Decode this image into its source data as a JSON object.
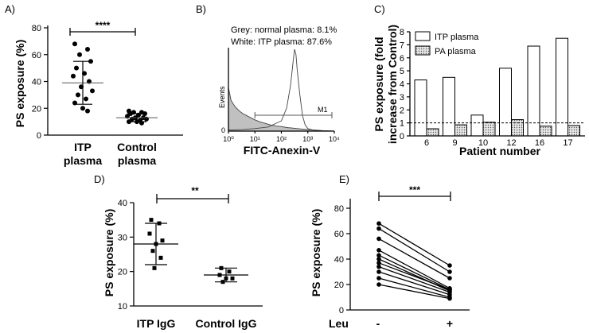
{
  "chart_data": [
    {
      "panel": "A)",
      "type": "scatter",
      "ylabel": "PS exposure (%)",
      "ylim": [
        0,
        80
      ],
      "yticks": [
        0,
        20,
        40,
        60,
        80
      ],
      "categories": [
        "ITP\nplasma",
        "Control\nplasma"
      ],
      "groups": [
        {
          "name": "ITP plasma",
          "mean": 39,
          "sd_low": 23,
          "sd_high": 55,
          "points": [
            68,
            64,
            60,
            55,
            50,
            46,
            44,
            40,
            36,
            33,
            30,
            27,
            24,
            20,
            18
          ]
        },
        {
          "name": "Control plasma",
          "mean": 13,
          "sd_low": 10,
          "sd_high": 16,
          "points": [
            18,
            17,
            17,
            16,
            16,
            15,
            14,
            13,
            13,
            12,
            12,
            11,
            10,
            10,
            9
          ]
        }
      ],
      "significance": "****",
      "marker": "circle"
    },
    {
      "panel": "B)",
      "type": "area",
      "xlabel": "FITC-Anexin-V",
      "ylabel": "Events",
      "xticks": [
        "10⁰",
        "10¹",
        "10²",
        "10³",
        "10⁴"
      ],
      "ytick_zero": "0",
      "annotation_line1": "Grey: normal plasma: 8.1%",
      "annotation_line2": "White: ITP plasma: 87.6%",
      "gate_label": "M1",
      "series": [
        {
          "name": "normal plasma",
          "fill": "#c0c0c0",
          "log_x": [
            0.0,
            0.1,
            0.25,
            0.4,
            0.55,
            0.7,
            0.85,
            1.0,
            1.2,
            1.4,
            1.6,
            1.8,
            2.0,
            2.2,
            2.4,
            2.6,
            2.8,
            3.0,
            3.3,
            3.6,
            4.0
          ],
          "counts": [
            85,
            60,
            48,
            40,
            34,
            30,
            26,
            22,
            18,
            15,
            12,
            10,
            9,
            7,
            6,
            5,
            4,
            3,
            2,
            1,
            0
          ]
        },
        {
          "name": "ITP plasma",
          "fill": "#ffffff",
          "log_x": [
            0.0,
            0.5,
            1.0,
            1.5,
            2.0,
            2.2,
            2.35,
            2.45,
            2.5,
            2.55,
            2.6,
            2.7,
            2.8,
            2.9,
            3.0,
            3.2,
            3.5,
            4.0
          ],
          "counts": [
            2,
            3,
            5,
            8,
            20,
            45,
            90,
            140,
            160,
            150,
            120,
            70,
            30,
            12,
            5,
            2,
            1,
            0
          ]
        }
      ],
      "gate_log_range": [
        1.0,
        4.0
      ]
    },
    {
      "panel": "C)",
      "type": "bar",
      "xlabel": "Patient number",
      "ylabel": "PS exposure (fold increase from Control)",
      "ylabel_line1": "PS exposure (fold",
      "ylabel_line2": "increase from Control)",
      "ylim": [
        0,
        8
      ],
      "yticks": [
        0,
        1,
        2,
        3,
        4,
        5,
        6,
        7,
        8
      ],
      "reference_line": 1,
      "categories": [
        "6",
        "9",
        "10",
        "12",
        "16",
        "17"
      ],
      "series": [
        {
          "name": "ITP plasma",
          "values": [
            4.3,
            4.5,
            1.6,
            5.2,
            6.9,
            7.5
          ]
        },
        {
          "name": "PA plasma",
          "values": [
            0.55,
            0.85,
            1.05,
            1.25,
            0.75,
            0.8
          ]
        }
      ]
    },
    {
      "panel": "D)",
      "type": "scatter",
      "ylabel": "PS exposure (%)",
      "ylim": [
        10,
        40
      ],
      "yticks": [
        10,
        20,
        30,
        40
      ],
      "categories": [
        "ITP IgG",
        "Control IgG"
      ],
      "groups": [
        {
          "name": "ITP IgG",
          "mean": 28,
          "sd_low": 22,
          "sd_high": 34,
          "points": [
            35,
            34,
            31,
            29,
            28,
            26,
            24,
            21
          ]
        },
        {
          "name": "Control IgG",
          "mean": 19,
          "sd_low": 17,
          "sd_high": 21,
          "points": [
            21,
            20,
            19,
            18,
            18,
            17
          ]
        }
      ],
      "significance": "**",
      "marker": "square"
    },
    {
      "panel": "E)",
      "type": "line",
      "ylabel": "PS exposure (%)",
      "xlabel": "Leu",
      "ylim": [
        0,
        80
      ],
      "yticks": [
        0,
        20,
        40,
        60,
        80
      ],
      "categories": [
        "-",
        "+"
      ],
      "pairs": [
        [
          68,
          35
        ],
        [
          64,
          30
        ],
        [
          56,
          25
        ],
        [
          47,
          17
        ],
        [
          43,
          16
        ],
        [
          40,
          15
        ],
        [
          37,
          16
        ],
        [
          34,
          14
        ],
        [
          30,
          12
        ],
        [
          25,
          10
        ],
        [
          20,
          9
        ]
      ],
      "significance": "***"
    }
  ]
}
